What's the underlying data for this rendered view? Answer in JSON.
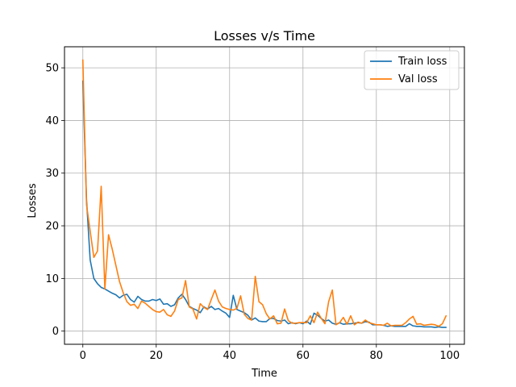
{
  "chart_data": {
    "type": "line",
    "title": "Losses v/s Time",
    "xlabel": "Time",
    "ylabel": "Losses",
    "xlim": [
      -5,
      104
    ],
    "ylim": [
      -2.5,
      54
    ],
    "xticks": [
      0,
      20,
      40,
      60,
      80,
      100
    ],
    "yticks": [
      0,
      10,
      20,
      30,
      40,
      50
    ],
    "grid": true,
    "legend_position": "top-right",
    "series": [
      {
        "name": "Train loss",
        "color": "#1f77b4",
        "values": [
          47.5,
          25.0,
          13.5,
          10.0,
          9.0,
          8.3,
          8.0,
          7.6,
          7.2,
          6.9,
          6.3,
          6.8,
          7.0,
          6.0,
          5.5,
          6.6,
          6.0,
          5.7,
          5.7,
          6.0,
          5.8,
          6.1,
          5.1,
          5.2,
          4.7,
          5.0,
          6.3,
          7.0,
          6.0,
          4.7,
          4.3,
          4.0,
          3.5,
          4.6,
          4.2,
          4.7,
          4.1,
          4.3,
          3.8,
          3.4,
          2.6,
          6.8,
          4.1,
          3.8,
          3.5,
          3.0,
          2.1,
          2.5,
          1.9,
          1.8,
          1.8,
          2.4,
          2.4,
          2.0,
          1.9,
          2.1,
          1.4,
          1.6,
          1.4,
          1.6,
          1.4,
          1.9,
          1.3,
          3.4,
          3.0,
          2.4,
          1.9,
          2.1,
          1.5,
          1.3,
          1.6,
          1.3,
          1.4,
          1.4,
          1.5,
          1.6,
          1.5,
          1.8,
          1.7,
          1.2,
          1.2,
          1.2,
          1.1,
          0.9,
          1.0,
          0.9,
          0.9,
          0.9,
          0.9,
          1.4,
          1.0,
          0.9,
          0.9,
          0.8,
          0.8,
          0.8,
          0.7,
          0.8,
          0.7,
          0.7
        ]
      },
      {
        "name": "Val loss",
        "color": "#ff7f0e",
        "values": [
          51.5,
          24.0,
          19.0,
          14.0,
          15.2,
          27.5,
          8.0,
          18.3,
          15.6,
          12.5,
          9.4,
          7.3,
          5.6,
          4.9,
          5.1,
          4.3,
          5.7,
          5.3,
          4.7,
          4.1,
          3.7,
          3.6,
          4.1,
          3.1,
          2.8,
          3.8,
          6.0,
          6.3,
          9.6,
          4.6,
          4.2,
          2.3,
          5.2,
          4.5,
          4.1,
          6.0,
          7.8,
          5.7,
          4.6,
          4.3,
          4.1,
          4.0,
          4.3,
          6.7,
          3.2,
          2.4,
          2.1,
          10.4,
          5.6,
          5.0,
          3.3,
          2.3,
          2.9,
          1.4,
          1.5,
          4.2,
          2.0,
          1.5,
          1.5,
          1.6,
          1.6,
          1.6,
          2.9,
          1.6,
          3.6,
          2.4,
          1.4,
          5.6,
          7.8,
          1.2,
          1.6,
          2.6,
          1.3,
          2.9,
          1.2,
          1.7,
          1.5,
          2.1,
          1.6,
          1.4,
          1.2,
          1.2,
          1.1,
          1.5,
          1.0,
          1.1,
          1.1,
          1.1,
          1.6,
          2.3,
          2.8,
          1.3,
          1.4,
          1.1,
          1.2,
          1.3,
          1.2,
          0.9,
          1.4,
          2.9
        ]
      }
    ]
  }
}
